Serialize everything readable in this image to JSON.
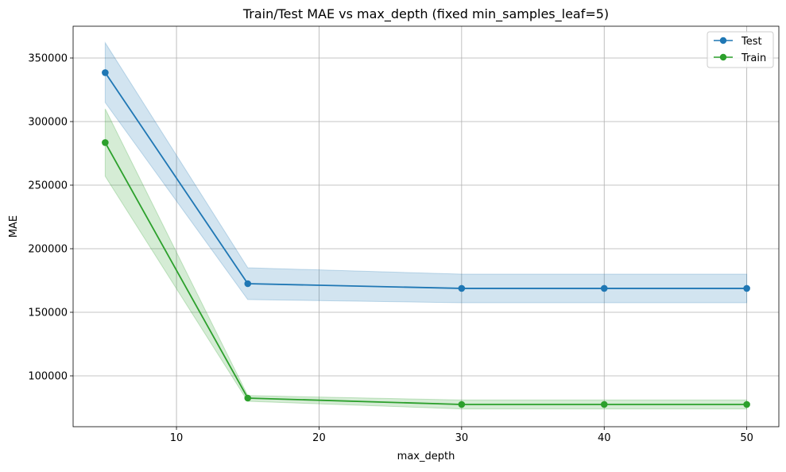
{
  "chart_data": {
    "type": "line",
    "title": "Train/Test MAE vs max_depth (fixed min_samples_leaf=5)",
    "xlabel": "max_depth",
    "ylabel": "MAE",
    "xlim": [
      2.75,
      52.25
    ],
    "ylim": [
      60000,
      375000
    ],
    "x_ticks": [
      10,
      20,
      30,
      40,
      50
    ],
    "y_ticks": [
      100000,
      150000,
      200000,
      250000,
      300000,
      350000
    ],
    "x_tick_labels": [
      "10",
      "20",
      "30",
      "40",
      "50"
    ],
    "y_tick_labels": [
      "100000",
      "150000",
      "200000",
      "250000",
      "300000",
      "350000"
    ],
    "grid": true,
    "legend_position": "top-right",
    "x": [
      5,
      15,
      30,
      40,
      50
    ],
    "series": [
      {
        "name": "Test",
        "color": "#1f77b4",
        "band_color": "#1f77b4",
        "values": [
          338500,
          172500,
          168800,
          168800,
          168800
        ],
        "band_upper": [
          362000,
          185000,
          180000,
          180000,
          180000
        ],
        "band_lower": [
          315000,
          160000,
          157500,
          157500,
          157500
        ]
      },
      {
        "name": "Train",
        "color": "#2ca02c",
        "band_color": "#2ca02c",
        "values": [
          283500,
          82500,
          77500,
          77500,
          77500
        ],
        "band_upper": [
          310000,
          84500,
          81000,
          81000,
          81000
        ],
        "band_lower": [
          257000,
          80000,
          74000,
          74000,
          74000
        ]
      }
    ]
  }
}
